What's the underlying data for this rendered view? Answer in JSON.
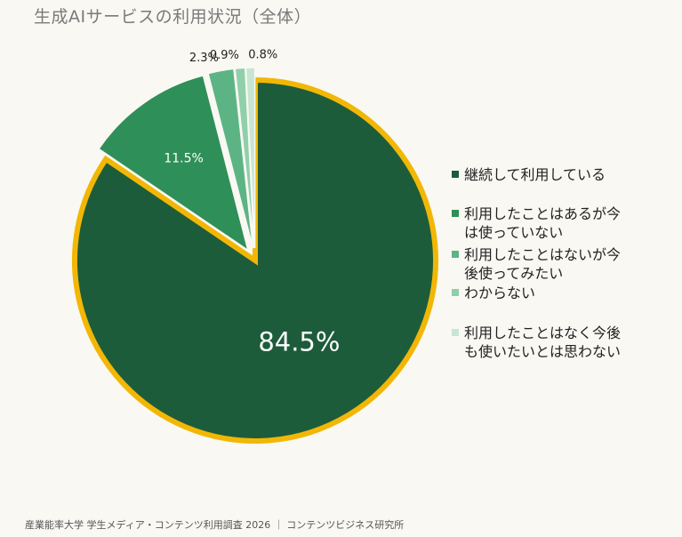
{
  "title": "生成AIサービスの利用状況（全体）",
  "footer": "産業能率大学 学生メディア・コンテンツ利用調査 2026 ｜ コンテンツビジネス研究所",
  "chart_data": {
    "type": "pie",
    "title": "生成AIサービスの利用状況（全体）",
    "slices": [
      {
        "label": "継続して利用している",
        "value": 84.5,
        "value_label": "84.5%",
        "color": "#1d5c3b",
        "highlighted": true
      },
      {
        "label": "利用したことはあるが今\nは使っていない",
        "value": 11.5,
        "value_label": "11.5%",
        "color": "#2f8f58",
        "highlighted": false
      },
      {
        "label": "利用したことはないが今\n後使ってみたい",
        "value": 2.3,
        "value_label": "2.3%",
        "color": "#5cb485",
        "highlighted": false
      },
      {
        "label": "わからない",
        "value": 0.9,
        "value_label": "0.9%",
        "color": "#8fcfaa",
        "highlighted": false
      },
      {
        "label": "利用したことはなく今後\nも使いたいとは思わない",
        "value": 0.8,
        "value_label": "0.8%",
        "color": "#c6e6d2",
        "highlighted": false
      }
    ],
    "start_angle": "12 o'clock",
    "direction": "clockwise",
    "legend_position": "right",
    "highlight_color": "#f2b705"
  }
}
